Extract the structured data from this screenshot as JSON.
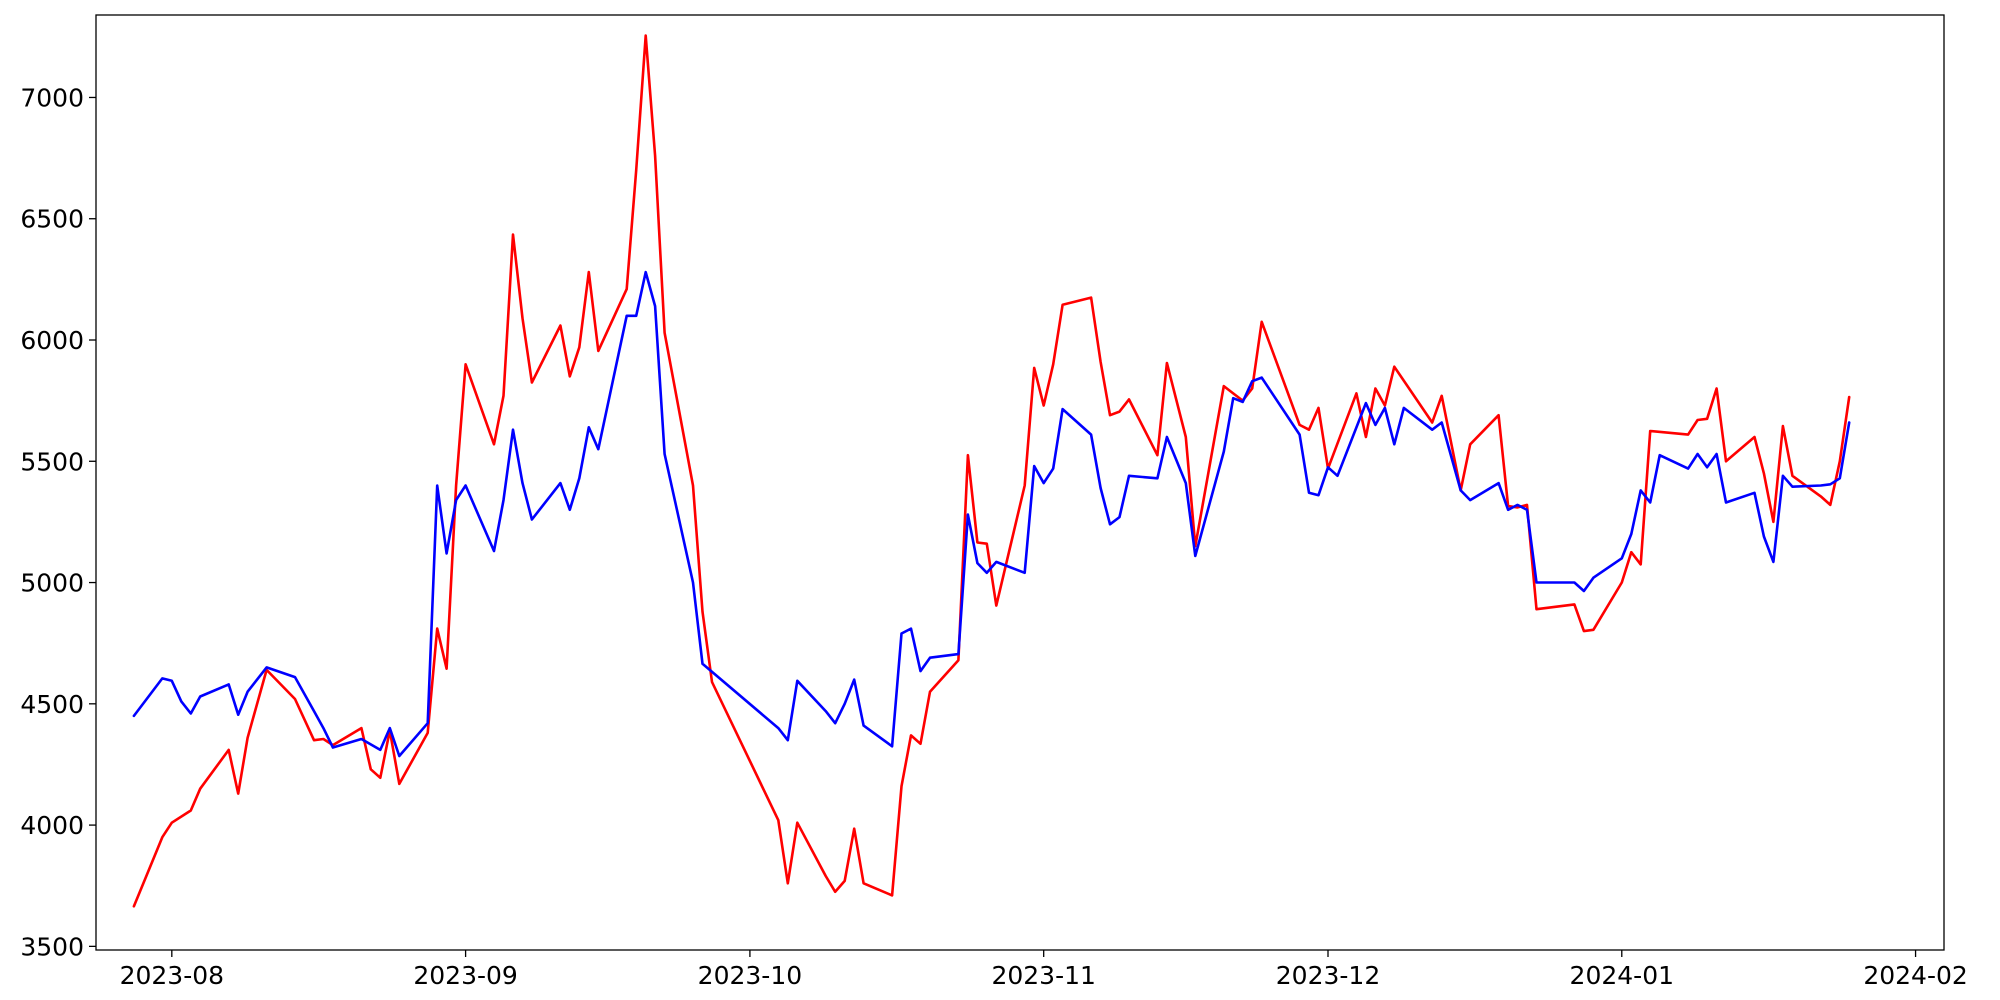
{
  "chart_data": {
    "type": "line",
    "title": "",
    "xlabel": "",
    "ylabel": "",
    "grid": false,
    "legend": "none",
    "xlim": [
      "2023-07-24",
      "2024-02-04"
    ],
    "ylim": [
      3485,
      7340
    ],
    "x_ticks": [
      {
        "date": "2023-08-01",
        "label": "2023-08"
      },
      {
        "date": "2023-09-01",
        "label": "2023-09"
      },
      {
        "date": "2023-10-01",
        "label": "2023-10"
      },
      {
        "date": "2023-11-01",
        "label": "2023-11"
      },
      {
        "date": "2023-12-01",
        "label": "2023-12"
      },
      {
        "date": "2024-01-01",
        "label": "2024-01"
      },
      {
        "date": "2024-02-01",
        "label": "2024-02"
      }
    ],
    "y_ticks": [
      {
        "value": 3500,
        "label": "3500"
      },
      {
        "value": 4000,
        "label": "4000"
      },
      {
        "value": 4500,
        "label": "4500"
      },
      {
        "value": 5000,
        "label": "5000"
      },
      {
        "value": 5500,
        "label": "5500"
      },
      {
        "value": 6000,
        "label": "6000"
      },
      {
        "value": 6500,
        "label": "6500"
      },
      {
        "value": 7000,
        "label": "7000"
      }
    ],
    "series": [
      {
        "color": "#ff0000",
        "points": [
          [
            "2023-07-28",
            3665
          ],
          [
            "2023-07-31",
            3950
          ],
          [
            "2023-08-01",
            4010
          ],
          [
            "2023-08-03",
            4060
          ],
          [
            "2023-08-04",
            4150
          ],
          [
            "2023-08-07",
            4310
          ],
          [
            "2023-08-08",
            4130
          ],
          [
            "2023-08-09",
            4360
          ],
          [
            "2023-08-11",
            4640
          ],
          [
            "2023-08-14",
            4520
          ],
          [
            "2023-08-16",
            4350
          ],
          [
            "2023-08-17",
            4355
          ],
          [
            "2023-08-18",
            4330
          ],
          [
            "2023-08-21",
            4400
          ],
          [
            "2023-08-22",
            4230
          ],
          [
            "2023-08-23",
            4195
          ],
          [
            "2023-08-24",
            4390
          ],
          [
            "2023-08-25",
            4170
          ],
          [
            "2023-08-28",
            4380
          ],
          [
            "2023-08-29",
            4810
          ],
          [
            "2023-08-30",
            4645
          ],
          [
            "2023-08-31",
            5400
          ],
          [
            "2023-09-01",
            5900
          ],
          [
            "2023-09-04",
            5570
          ],
          [
            "2023-09-05",
            5770
          ],
          [
            "2023-09-06",
            6435
          ],
          [
            "2023-09-07",
            6090
          ],
          [
            "2023-09-08",
            5825
          ],
          [
            "2023-09-11",
            6060
          ],
          [
            "2023-09-12",
            5850
          ],
          [
            "2023-09-13",
            5970
          ],
          [
            "2023-09-14",
            6280
          ],
          [
            "2023-09-15",
            5955
          ],
          [
            "2023-09-18",
            6210
          ],
          [
            "2023-09-19",
            6700
          ],
          [
            "2023-09-20",
            7255
          ],
          [
            "2023-09-21",
            6760
          ],
          [
            "2023-09-22",
            6030
          ],
          [
            "2023-09-25",
            5400
          ],
          [
            "2023-09-26",
            4880
          ],
          [
            "2023-09-27",
            4590
          ],
          [
            "2023-10-04",
            4020
          ],
          [
            "2023-10-05",
            3760
          ],
          [
            "2023-10-06",
            4010
          ],
          [
            "2023-10-09",
            3790
          ],
          [
            "2023-10-10",
            3725
          ],
          [
            "2023-10-11",
            3770
          ],
          [
            "2023-10-12",
            3985
          ],
          [
            "2023-10-13",
            3760
          ],
          [
            "2023-10-16",
            3710
          ],
          [
            "2023-10-17",
            4160
          ],
          [
            "2023-10-18",
            4370
          ],
          [
            "2023-10-19",
            4335
          ],
          [
            "2023-10-20",
            4550
          ],
          [
            "2023-10-23",
            4680
          ],
          [
            "2023-10-24",
            5525
          ],
          [
            "2023-10-25",
            5165
          ],
          [
            "2023-10-26",
            5160
          ],
          [
            "2023-10-27",
            4905
          ],
          [
            "2023-10-30",
            5400
          ],
          [
            "2023-10-31",
            5885
          ],
          [
            "2023-11-01",
            5730
          ],
          [
            "2023-11-02",
            5900
          ],
          [
            "2023-11-03",
            6145
          ],
          [
            "2023-11-06",
            6175
          ],
          [
            "2023-11-07",
            5910
          ],
          [
            "2023-11-08",
            5690
          ],
          [
            "2023-11-09",
            5705
          ],
          [
            "2023-11-10",
            5755
          ],
          [
            "2023-11-13",
            5525
          ],
          [
            "2023-11-14",
            5905
          ],
          [
            "2023-11-16",
            5600
          ],
          [
            "2023-11-17",
            5150
          ],
          [
            "2023-11-20",
            5810
          ],
          [
            "2023-11-21",
            5780
          ],
          [
            "2023-11-22",
            5750
          ],
          [
            "2023-11-23",
            5800
          ],
          [
            "2023-11-24",
            6075
          ],
          [
            "2023-11-28",
            5650
          ],
          [
            "2023-11-29",
            5630
          ],
          [
            "2023-11-30",
            5720
          ],
          [
            "2023-12-01",
            5470
          ],
          [
            "2023-12-04",
            5780
          ],
          [
            "2023-12-05",
            5600
          ],
          [
            "2023-12-06",
            5800
          ],
          [
            "2023-12-07",
            5730
          ],
          [
            "2023-12-08",
            5890
          ],
          [
            "2023-12-12",
            5660
          ],
          [
            "2023-12-13",
            5770
          ],
          [
            "2023-12-15",
            5380
          ],
          [
            "2023-12-16",
            5570
          ],
          [
            "2023-12-19",
            5690
          ],
          [
            "2023-12-20",
            5315
          ],
          [
            "2023-12-21",
            5310
          ],
          [
            "2023-12-22",
            5320
          ],
          [
            "2023-12-23",
            4890
          ],
          [
            "2023-12-27",
            4910
          ],
          [
            "2023-12-28",
            4800
          ],
          [
            "2023-12-29",
            4805
          ],
          [
            "2024-01-01",
            5000
          ],
          [
            "2024-01-02",
            5125
          ],
          [
            "2024-01-03",
            5075
          ],
          [
            "2024-01-04",
            5625
          ],
          [
            "2024-01-08",
            5610
          ],
          [
            "2024-01-09",
            5670
          ],
          [
            "2024-01-10",
            5675
          ],
          [
            "2024-01-11",
            5800
          ],
          [
            "2024-01-12",
            5500
          ],
          [
            "2024-01-15",
            5600
          ],
          [
            "2024-01-16",
            5450
          ],
          [
            "2024-01-17",
            5250
          ],
          [
            "2024-01-18",
            5645
          ],
          [
            "2024-01-19",
            5440
          ],
          [
            "2024-01-22",
            5355
          ],
          [
            "2024-01-23",
            5320
          ],
          [
            "2024-01-24",
            5500
          ],
          [
            "2024-01-25",
            5765
          ]
        ]
      },
      {
        "color": "#0000ff",
        "points": [
          [
            "2023-07-28",
            4450
          ],
          [
            "2023-07-31",
            4605
          ],
          [
            "2023-08-01",
            4595
          ],
          [
            "2023-08-02",
            4510
          ],
          [
            "2023-08-03",
            4460
          ],
          [
            "2023-08-04",
            4530
          ],
          [
            "2023-08-07",
            4580
          ],
          [
            "2023-08-08",
            4455
          ],
          [
            "2023-08-09",
            4550
          ],
          [
            "2023-08-11",
            4650
          ],
          [
            "2023-08-14",
            4610
          ],
          [
            "2023-08-16",
            4470
          ],
          [
            "2023-08-17",
            4400
          ],
          [
            "2023-08-18",
            4320
          ],
          [
            "2023-08-21",
            4355
          ],
          [
            "2023-08-23",
            4310
          ],
          [
            "2023-08-24",
            4400
          ],
          [
            "2023-08-25",
            4285
          ],
          [
            "2023-08-28",
            4420
          ],
          [
            "2023-08-29",
            5400
          ],
          [
            "2023-08-30",
            5120
          ],
          [
            "2023-08-31",
            5340
          ],
          [
            "2023-09-01",
            5400
          ],
          [
            "2023-09-04",
            5130
          ],
          [
            "2023-09-05",
            5340
          ],
          [
            "2023-09-06",
            5630
          ],
          [
            "2023-09-07",
            5410
          ],
          [
            "2023-09-08",
            5260
          ],
          [
            "2023-09-11",
            5410
          ],
          [
            "2023-09-12",
            5300
          ],
          [
            "2023-09-13",
            5430
          ],
          [
            "2023-09-14",
            5640
          ],
          [
            "2023-09-15",
            5550
          ],
          [
            "2023-09-18",
            6100
          ],
          [
            "2023-09-19",
            6100
          ],
          [
            "2023-09-20",
            6280
          ],
          [
            "2023-09-21",
            6140
          ],
          [
            "2023-09-22",
            5530
          ],
          [
            "2023-09-25",
            5000
          ],
          [
            "2023-09-26",
            4665
          ],
          [
            "2023-10-04",
            4400
          ],
          [
            "2023-10-05",
            4350
          ],
          [
            "2023-10-06",
            4595
          ],
          [
            "2023-10-09",
            4470
          ],
          [
            "2023-10-10",
            4420
          ],
          [
            "2023-10-11",
            4500
          ],
          [
            "2023-10-12",
            4600
          ],
          [
            "2023-10-13",
            4410
          ],
          [
            "2023-10-16",
            4325
          ],
          [
            "2023-10-17",
            4790
          ],
          [
            "2023-10-18",
            4810
          ],
          [
            "2023-10-19",
            4635
          ],
          [
            "2023-10-20",
            4690
          ],
          [
            "2023-10-23",
            4705
          ],
          [
            "2023-10-24",
            5280
          ],
          [
            "2023-10-25",
            5080
          ],
          [
            "2023-10-26",
            5040
          ],
          [
            "2023-10-27",
            5085
          ],
          [
            "2023-10-30",
            5040
          ],
          [
            "2023-10-31",
            5480
          ],
          [
            "2023-11-01",
            5410
          ],
          [
            "2023-11-02",
            5470
          ],
          [
            "2023-11-03",
            5715
          ],
          [
            "2023-11-06",
            5610
          ],
          [
            "2023-11-07",
            5390
          ],
          [
            "2023-11-08",
            5240
          ],
          [
            "2023-11-09",
            5270
          ],
          [
            "2023-11-10",
            5440
          ],
          [
            "2023-11-13",
            5430
          ],
          [
            "2023-11-14",
            5600
          ],
          [
            "2023-11-16",
            5410
          ],
          [
            "2023-11-17",
            5110
          ],
          [
            "2023-11-20",
            5540
          ],
          [
            "2023-11-21",
            5760
          ],
          [
            "2023-11-22",
            5745
          ],
          [
            "2023-11-23",
            5830
          ],
          [
            "2023-11-24",
            5845
          ],
          [
            "2023-11-28",
            5610
          ],
          [
            "2023-11-29",
            5370
          ],
          [
            "2023-11-30",
            5360
          ],
          [
            "2023-12-01",
            5475
          ],
          [
            "2023-12-02",
            5440
          ],
          [
            "2023-12-05",
            5740
          ],
          [
            "2023-12-06",
            5650
          ],
          [
            "2023-12-07",
            5720
          ],
          [
            "2023-12-08",
            5570
          ],
          [
            "2023-12-09",
            5720
          ],
          [
            "2023-12-12",
            5630
          ],
          [
            "2023-12-13",
            5660
          ],
          [
            "2023-12-15",
            5380
          ],
          [
            "2023-12-16",
            5340
          ],
          [
            "2023-12-19",
            5410
          ],
          [
            "2023-12-20",
            5300
          ],
          [
            "2023-12-21",
            5320
          ],
          [
            "2023-12-22",
            5300
          ],
          [
            "2023-12-23",
            5000
          ],
          [
            "2023-12-27",
            5000
          ],
          [
            "2023-12-28",
            4965
          ],
          [
            "2023-12-29",
            5020
          ],
          [
            "2024-01-01",
            5100
          ],
          [
            "2024-01-02",
            5200
          ],
          [
            "2024-01-03",
            5380
          ],
          [
            "2024-01-04",
            5330
          ],
          [
            "2024-01-05",
            5525
          ],
          [
            "2024-01-08",
            5470
          ],
          [
            "2024-01-09",
            5530
          ],
          [
            "2024-01-10",
            5475
          ],
          [
            "2024-01-11",
            5530
          ],
          [
            "2024-01-12",
            5330
          ],
          [
            "2024-01-15",
            5370
          ],
          [
            "2024-01-16",
            5190
          ],
          [
            "2024-01-17",
            5085
          ],
          [
            "2024-01-18",
            5440
          ],
          [
            "2024-01-19",
            5395
          ],
          [
            "2024-01-22",
            5400
          ],
          [
            "2024-01-23",
            5405
          ],
          [
            "2024-01-24",
            5430
          ],
          [
            "2024-01-25",
            5660
          ]
        ]
      }
    ]
  }
}
